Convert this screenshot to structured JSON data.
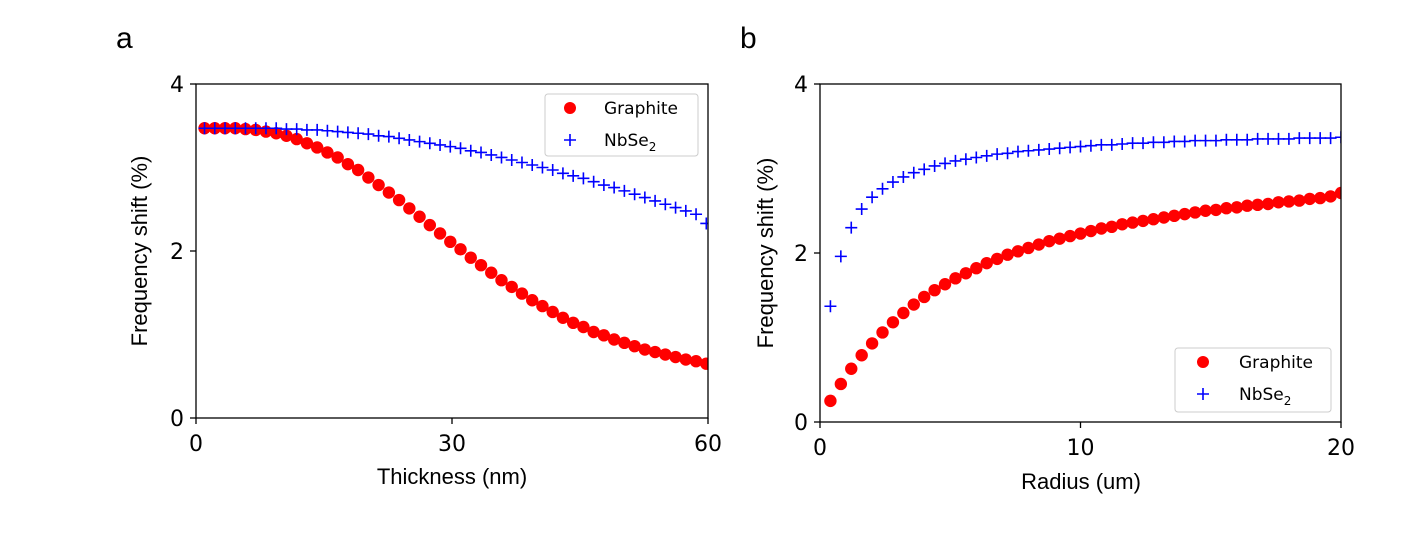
{
  "chart_data": [
    {
      "panel_label": "a",
      "type": "scatter",
      "xlabel": "Thickness (nm)",
      "ylabel": "Frequency shift (%)",
      "xlim": [
        0,
        60
      ],
      "ylim": [
        0,
        4
      ],
      "xticks": [
        0,
        30,
        60
      ],
      "yticks": [
        0,
        2,
        4
      ],
      "xtick_labels": [
        "0",
        "30",
        "60"
      ],
      "ytick_labels": [
        "0",
        "2",
        "4"
      ],
      "legend": {
        "location": "upper-right",
        "entries": [
          "Graphite",
          "NbSe2"
        ]
      },
      "series": [
        {
          "name": "Graphite",
          "label_main": "Graphite",
          "label_sub": "",
          "marker": "circle",
          "color": "#ff0000",
          "x": [
            1.0,
            2.2,
            3.4,
            4.6,
            5.8,
            7.0,
            8.2,
            9.4,
            10.6,
            11.8,
            13.0,
            14.2,
            15.4,
            16.6,
            17.8,
            19.0,
            20.2,
            21.4,
            22.6,
            23.8,
            25.0,
            26.2,
            27.4,
            28.6,
            29.8,
            31.0,
            32.2,
            33.4,
            34.6,
            35.8,
            37.0,
            38.2,
            39.4,
            40.6,
            41.8,
            43.0,
            44.2,
            45.4,
            46.6,
            47.8,
            49.0,
            50.2,
            51.4,
            52.6,
            53.8,
            55.0,
            56.2,
            57.4,
            58.6,
            59.8
          ],
          "y": [
            3.47,
            3.47,
            3.47,
            3.47,
            3.46,
            3.45,
            3.43,
            3.41,
            3.38,
            3.34,
            3.29,
            3.24,
            3.18,
            3.12,
            3.04,
            2.97,
            2.88,
            2.79,
            2.7,
            2.61,
            2.51,
            2.41,
            2.31,
            2.21,
            2.11,
            2.02,
            1.92,
            1.83,
            1.74,
            1.65,
            1.57,
            1.49,
            1.41,
            1.34,
            1.27,
            1.2,
            1.14,
            1.09,
            1.03,
            0.99,
            0.94,
            0.9,
            0.86,
            0.82,
            0.79,
            0.76,
            0.73,
            0.7,
            0.68,
            0.65
          ]
        },
        {
          "name": "NbSe2",
          "label_main": "NbSe",
          "label_sub": "2",
          "marker": "plus",
          "color": "#0000ff",
          "x": [
            1.0,
            2.2,
            3.4,
            4.6,
            5.8,
            7.0,
            8.2,
            9.4,
            10.6,
            11.8,
            13.0,
            14.2,
            15.4,
            16.6,
            17.8,
            19.0,
            20.2,
            21.4,
            22.6,
            23.8,
            25.0,
            26.2,
            27.4,
            28.6,
            29.8,
            31.0,
            32.2,
            33.4,
            34.6,
            35.8,
            37.0,
            38.2,
            39.4,
            40.6,
            41.8,
            43.0,
            44.2,
            45.4,
            46.6,
            47.8,
            49.0,
            50.2,
            51.4,
            52.6,
            53.8,
            55.0,
            56.2,
            57.4,
            58.6,
            59.8
          ],
          "y": [
            3.47,
            3.47,
            3.47,
            3.47,
            3.47,
            3.47,
            3.47,
            3.47,
            3.46,
            3.46,
            3.45,
            3.45,
            3.44,
            3.43,
            3.42,
            3.41,
            3.4,
            3.38,
            3.37,
            3.35,
            3.33,
            3.31,
            3.29,
            3.27,
            3.25,
            3.23,
            3.2,
            3.18,
            3.15,
            3.12,
            3.09,
            3.06,
            3.03,
            3.0,
            2.97,
            2.93,
            2.9,
            2.87,
            2.83,
            2.79,
            2.76,
            2.72,
            2.68,
            2.64,
            2.6,
            2.56,
            2.52,
            2.48,
            2.44,
            2.33
          ]
        }
      ]
    },
    {
      "panel_label": "b",
      "type": "scatter",
      "xlabel": "Radius (um)",
      "ylabel": "Frequency shift (%)",
      "xlim": [
        0,
        20
      ],
      "ylim": [
        0,
        4
      ],
      "xticks": [
        0,
        10,
        20
      ],
      "yticks": [
        0,
        2,
        4
      ],
      "xtick_labels": [
        "0",
        "10",
        "20"
      ],
      "ytick_labels": [
        "0",
        "2",
        "4"
      ],
      "legend": {
        "location": "lower-right",
        "entries": [
          "Graphite",
          "NbSe2"
        ]
      },
      "series": [
        {
          "name": "Graphite",
          "label_main": "Graphite",
          "label_sub": "",
          "marker": "circle",
          "color": "#ff0000",
          "x": [
            0.4,
            0.8,
            1.2,
            1.6,
            2.0,
            2.4,
            2.8,
            3.2,
            3.6,
            4.0,
            4.4,
            4.8,
            5.2,
            5.6,
            6.0,
            6.4,
            6.8,
            7.2,
            7.6,
            8.0,
            8.4,
            8.8,
            9.2,
            9.6,
            10.0,
            10.4,
            10.8,
            11.2,
            11.6,
            12.0,
            12.4,
            12.8,
            13.2,
            13.6,
            14.0,
            14.4,
            14.8,
            15.2,
            15.6,
            16.0,
            16.4,
            16.8,
            17.2,
            17.6,
            18.0,
            18.4,
            18.8,
            19.2,
            19.6,
            20.0
          ],
          "y": [
            0.25,
            0.45,
            0.63,
            0.79,
            0.93,
            1.06,
            1.18,
            1.29,
            1.39,
            1.48,
            1.56,
            1.63,
            1.7,
            1.76,
            1.82,
            1.88,
            1.93,
            1.98,
            2.02,
            2.06,
            2.1,
            2.14,
            2.17,
            2.2,
            2.23,
            2.26,
            2.29,
            2.31,
            2.34,
            2.36,
            2.38,
            2.4,
            2.42,
            2.44,
            2.46,
            2.48,
            2.5,
            2.51,
            2.53,
            2.54,
            2.56,
            2.57,
            2.58,
            2.6,
            2.61,
            2.62,
            2.64,
            2.65,
            2.67,
            2.71
          ]
        },
        {
          "name": "NbSe2",
          "label_main": "NbSe",
          "label_sub": "2",
          "marker": "plus",
          "color": "#0000ff",
          "x": [
            0.4,
            0.8,
            1.2,
            1.6,
            2.0,
            2.4,
            2.8,
            3.2,
            3.6,
            4.0,
            4.4,
            4.8,
            5.2,
            5.6,
            6.0,
            6.4,
            6.8,
            7.2,
            7.6,
            8.0,
            8.4,
            8.8,
            9.2,
            9.6,
            10.0,
            10.4,
            10.8,
            11.2,
            11.6,
            12.0,
            12.4,
            12.8,
            13.2,
            13.6,
            14.0,
            14.4,
            14.8,
            15.2,
            15.6,
            16.0,
            16.4,
            16.8,
            17.2,
            17.6,
            18.0,
            18.4,
            18.8,
            19.2,
            19.6,
            20.0
          ],
          "y": [
            1.37,
            1.96,
            2.3,
            2.52,
            2.66,
            2.76,
            2.84,
            2.9,
            2.95,
            2.99,
            3.03,
            3.06,
            3.09,
            3.11,
            3.13,
            3.15,
            3.17,
            3.18,
            3.2,
            3.21,
            3.22,
            3.23,
            3.24,
            3.25,
            3.26,
            3.27,
            3.28,
            3.28,
            3.29,
            3.3,
            3.3,
            3.31,
            3.31,
            3.32,
            3.32,
            3.33,
            3.33,
            3.33,
            3.34,
            3.34,
            3.34,
            3.35,
            3.35,
            3.35,
            3.35,
            3.36,
            3.36,
            3.36,
            3.36,
            3.37
          ]
        }
      ]
    }
  ]
}
